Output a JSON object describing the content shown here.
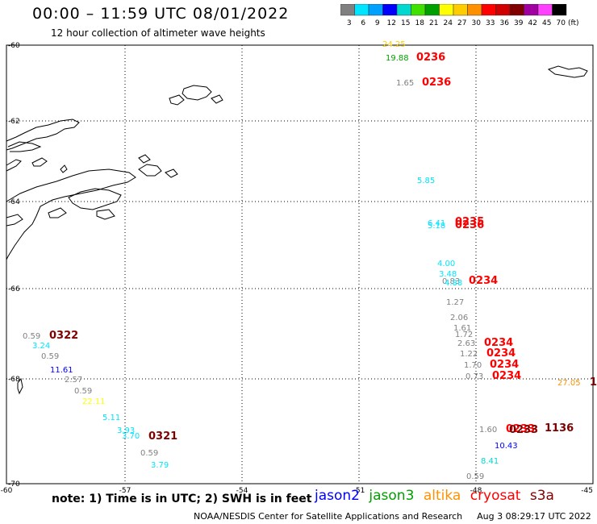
{
  "title": "00:00 – 11:59 UTC 08/01/2022",
  "subtitle": "12 hour collection of altimeter wave heights",
  "legend": {
    "unit": "(ft)",
    "bins": [
      {
        "label": "3",
        "color": "#808080"
      },
      {
        "label": "6",
        "color": "#00e5ff"
      },
      {
        "label": "9",
        "color": "#00a0ff"
      },
      {
        "label": "12",
        "color": "#0000ff"
      },
      {
        "label": "15",
        "color": "#00d8d0"
      },
      {
        "label": "18",
        "color": "#40e000"
      },
      {
        "label": "21",
        "color": "#00a000"
      },
      {
        "label": "24",
        "color": "#ffff00"
      },
      {
        "label": "27",
        "color": "#ffcc00"
      },
      {
        "label": "30",
        "color": "#ff9000"
      },
      {
        "label": "33",
        "color": "#ff0000"
      },
      {
        "label": "36",
        "color": "#d00000"
      },
      {
        "label": "39",
        "color": "#800000"
      },
      {
        "label": "42",
        "color": "#a000a0"
      },
      {
        "label": "45",
        "color": "#ff40ff"
      },
      {
        "label": "70",
        "color": "#000000"
      }
    ]
  },
  "axes": {
    "lat_labels": [
      "-60",
      "-62",
      "-64",
      "-66",
      "-68",
      "-70"
    ],
    "lon_labels": [
      "-60",
      "-57",
      "-54",
      "-51",
      "-48",
      "-45"
    ]
  },
  "observations": [
    {
      "text": "24.25",
      "color": "#ffcc00"
    },
    {
      "text": "19.88",
      "color": "#00a000"
    },
    {
      "text": "0236",
      "color": "#ff0000",
      "time": true
    },
    {
      "text": "1.65",
      "color": "#808080"
    },
    {
      "text": "0236",
      "color": "#ff0000",
      "time": true
    },
    {
      "text": "5.85",
      "color": "#00e5ff"
    },
    {
      "text": "6.41",
      "color": "#00e5ff"
    },
    {
      "text": "5.18",
      "color": "#00e5ff"
    },
    {
      "text": "0235",
      "color": "#ff0000",
      "time": true
    },
    {
      "text": "0236",
      "color": "#ff0000",
      "time": true
    },
    {
      "text": "4.00",
      "color": "#00e5ff"
    },
    {
      "text": "3.48",
      "color": "#00e5ff"
    },
    {
      "text": "0.83",
      "color": "#808080"
    },
    {
      "text": "4.88",
      "color": "#00e5ff"
    },
    {
      "text": "0234",
      "color": "#ff0000",
      "time": true
    },
    {
      "text": "1.27",
      "color": "#808080"
    },
    {
      "text": "2.06",
      "color": "#808080"
    },
    {
      "text": "1.61",
      "color": "#808080"
    },
    {
      "text": "1.72",
      "color": "#808080"
    },
    {
      "text": "2.63",
      "color": "#808080"
    },
    {
      "text": "0234",
      "color": "#ff0000",
      "time": true
    },
    {
      "text": "1.22",
      "color": "#808080"
    },
    {
      "text": "0234",
      "color": "#ff0000",
      "time": true
    },
    {
      "text": "1.70",
      "color": "#808080"
    },
    {
      "text": "0234",
      "color": "#ff0000",
      "time": true
    },
    {
      "text": "0.73",
      "color": "#808080"
    },
    {
      "text": "0234",
      "color": "#ff0000",
      "time": true
    },
    {
      "text": "27.05",
      "color": "#ff9000"
    },
    {
      "text": "1",
      "color": "#800000",
      "time": true
    },
    {
      "text": "1.60",
      "color": "#808080"
    },
    {
      "text": "0233",
      "color": "#ff0000",
      "time": true
    },
    {
      "text": "0233",
      "color": "#800000",
      "time": true
    },
    {
      "text": "1136",
      "color": "#800000",
      "time": true
    },
    {
      "text": "10.43",
      "color": "#0000ff"
    },
    {
      "text": "8.41",
      "color": "#00d8d0"
    },
    {
      "text": "0.59",
      "color": "#808080"
    },
    {
      "text": "0.59",
      "color": "#808080"
    },
    {
      "text": "0322",
      "color": "#800000",
      "time": true
    },
    {
      "text": "3.24",
      "color": "#00e5ff"
    },
    {
      "text": "0.59",
      "color": "#808080"
    },
    {
      "text": "11.61",
      "color": "#0000ff"
    },
    {
      "text": "2.57",
      "color": "#808080"
    },
    {
      "text": "0.59",
      "color": "#808080"
    },
    {
      "text": "22.11",
      "color": "#ffff00"
    },
    {
      "text": "5.11",
      "color": "#00e5ff"
    },
    {
      "text": "3.93",
      "color": "#00e5ff"
    },
    {
      "text": "3.70",
      "color": "#00e5ff"
    },
    {
      "text": "0321",
      "color": "#800000",
      "time": true
    },
    {
      "text": "0.59",
      "color": "#808080"
    },
    {
      "text": "3.79",
      "color": "#00e5ff"
    }
  ],
  "note": "note: 1) Time is in UTC; 2) SWH is in feet",
  "satellites": [
    {
      "name": "jason2",
      "color": "#0000ff"
    },
    {
      "name": "jason3",
      "color": "#00a000"
    },
    {
      "name": "altika",
      "color": "#ff9000"
    },
    {
      "name": "cryosat",
      "color": "#ff0000"
    },
    {
      "name": "s3a",
      "color": "#800000"
    }
  ],
  "footer": {
    "credit": "NOAA/NESDIS Center for Satellite Applications and Research",
    "timestamp": "Aug  3 08:29:17 UTC 2022"
  }
}
